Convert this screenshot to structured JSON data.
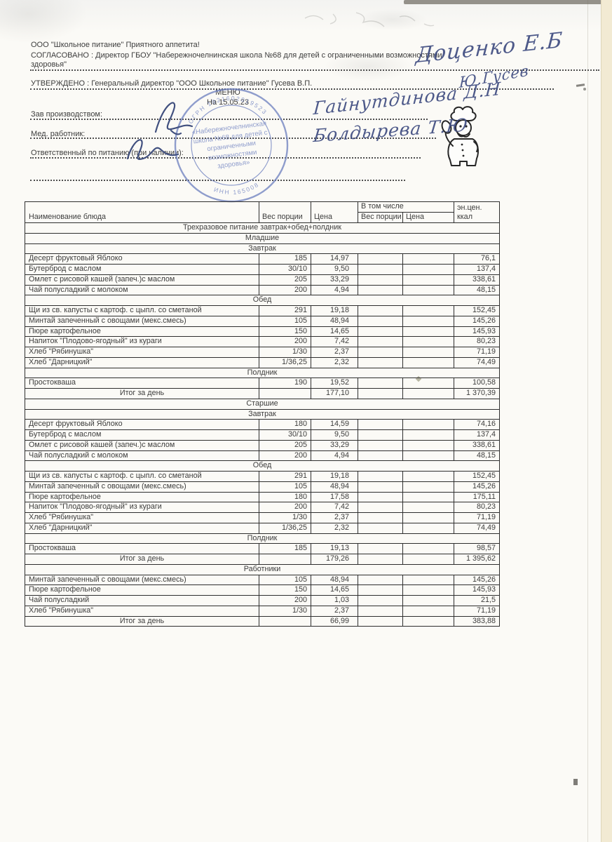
{
  "header": {
    "company_line": "ООО \"Школьное питание\" Приятного аппетита!",
    "agreed_label": "СОГЛАСОВАНО : Директор ГБОУ \"Набережночелнинская школа №68 для детей с ограниченными возможностями здоровья\"",
    "approved_label": "УТВЕРЖДЕНО : Генеральный директор \"ООО Школьное питание\" Гусева В.П.",
    "menu_title": "МЕНЮ",
    "menu_date": "На 15.05.23",
    "prod_manager_label": "Зав производством:",
    "med_worker_label": "Мед. работник:",
    "nutrition_resp_label": "Ответственный по питанию (при наличии):"
  },
  "signatures": {
    "agreed": "Доценко Е.Б",
    "approved": "Ю.Гусев",
    "prod_manager": "Гайнутдинова Д.Н",
    "med_worker": "Болдырева Т.Ю"
  },
  "stamp": {
    "arc_top": "ОГРН 1021602019523",
    "arc_bottom": "ИНН 165008",
    "line1": "«Набережночелнинская",
    "line2": "школа №68 для детей с",
    "line3": "ограниченными",
    "line4": "возможностями",
    "line5": "здоровья»",
    "color": "#7183c1"
  },
  "icons": {
    "chef_mascot": "chef-with-ladle-mascot-icon",
    "prod_scribble": "signature-scribble-icon",
    "med_scribble": "signature-scribble-icon"
  },
  "table": {
    "columns": {
      "name": "Наименование блюда",
      "weight": "Вес порции",
      "price": "Цена",
      "including": "В том числе",
      "weight2": "Вес порции",
      "price2": "Цена",
      "energy_line1": "эн.цен.",
      "energy_line2": "ккал"
    },
    "rows": [
      {
        "type": "section",
        "label": "Трехразовое питание завтрак+обед+полдник"
      },
      {
        "type": "section",
        "label": "Младшие"
      },
      {
        "type": "section",
        "label": "Завтрак"
      },
      {
        "type": "item",
        "name": "Десерт фруктовый Яблоко",
        "weight": "185",
        "price": "14,97",
        "kcal": "76,1"
      },
      {
        "type": "item",
        "name": "Бутерброд с маслом",
        "weight": "30/10",
        "price": "9,50",
        "kcal": "137,4"
      },
      {
        "type": "item",
        "name": "Омлет с рисовой кашей (запеч.)с маслом",
        "weight": "205",
        "price": "33,29",
        "kcal": "338,61"
      },
      {
        "type": "item",
        "name": "Чай полусладкий с молоком",
        "weight": "200",
        "price": "4,94",
        "kcal": "48,15"
      },
      {
        "type": "section",
        "label": "Обед"
      },
      {
        "type": "item",
        "name": "Щи из св. капусты с картоф. с цыпл. со сметаной",
        "weight": "291",
        "price": "19,18",
        "kcal": "152,45"
      },
      {
        "type": "item",
        "name": "Минтай запеченный с овощами (мекс.смесь)",
        "weight": "105",
        "price": "48,94",
        "kcal": "145,26"
      },
      {
        "type": "item",
        "name": "Пюре картофельное",
        "weight": "150",
        "price": "14,65",
        "kcal": "145,93"
      },
      {
        "type": "item",
        "name": "Напиток \"Плодово-ягодный\" из кураги",
        "weight": "200",
        "price": "7,42",
        "kcal": "80,23"
      },
      {
        "type": "item",
        "name": "Хлеб \"Рябинушка\"",
        "weight": "1/30",
        "price": "2,37",
        "kcal": "71,19"
      },
      {
        "type": "item",
        "name": "Хлеб \"Дарницкий\"",
        "weight": "1/36,25",
        "price": "2,32",
        "kcal": "74,49"
      },
      {
        "type": "section",
        "label": "Полдник"
      },
      {
        "type": "item",
        "name": "Простокваша",
        "weight": "190",
        "price": "19,52",
        "kcal": "100,58"
      },
      {
        "type": "total",
        "label": "Итог за день",
        "price": "177,10",
        "kcal": "1 370,39"
      },
      {
        "type": "section",
        "label": "Старшие"
      },
      {
        "type": "section",
        "label": "Завтрак"
      },
      {
        "type": "item",
        "name": "Десерт фруктовый Яблоко",
        "weight": "180",
        "price": "14,59",
        "kcal": "74,16"
      },
      {
        "type": "item",
        "name": "Бутерброд с маслом",
        "weight": "30/10",
        "price": "9,50",
        "kcal": "137,4"
      },
      {
        "type": "item",
        "name": "Омлет с рисовой кашей (запеч.)с маслом",
        "weight": "205",
        "price": "33,29",
        "kcal": "338,61"
      },
      {
        "type": "item",
        "name": "Чай полусладкий с молоком",
        "weight": "200",
        "price": "4,94",
        "kcal": "48,15"
      },
      {
        "type": "section",
        "label": "Обед"
      },
      {
        "type": "item",
        "name": "Щи из св. капусты с картоф. с цыпл. со сметаной",
        "weight": "291",
        "price": "19,18",
        "kcal": "152,45"
      },
      {
        "type": "item",
        "name": "Минтай запеченный с овощами (мекс.смесь)",
        "weight": "105",
        "price": "48,94",
        "kcal": "145,26"
      },
      {
        "type": "item",
        "name": "Пюре картофельное",
        "weight": "180",
        "price": "17,58",
        "kcal": "175,11"
      },
      {
        "type": "item",
        "name": "Напиток \"Плодово-ягодный\" из кураги",
        "weight": "200",
        "price": "7,42",
        "kcal": "80,23"
      },
      {
        "type": "item",
        "name": "Хлеб \"Рябинушка\"",
        "weight": "1/30",
        "price": "2,37",
        "kcal": "71,19"
      },
      {
        "type": "item",
        "name": "Хлеб \"Дарницкий\"",
        "weight": "1/36,25",
        "price": "2,32",
        "kcal": "74,49"
      },
      {
        "type": "section",
        "label": "Полдник"
      },
      {
        "type": "item",
        "name": "Простокваша",
        "weight": "185",
        "price": "19,13",
        "kcal": "98,57"
      },
      {
        "type": "total",
        "label": "Итог за день",
        "price": "179,26",
        "kcal": "1 395,62"
      },
      {
        "type": "section",
        "label": "Работники"
      },
      {
        "type": "item",
        "name": "Минтай запеченный с овощами (мекс.смесь)",
        "weight": "105",
        "price": "48,94",
        "kcal": "145,26"
      },
      {
        "type": "item",
        "name": "Пюре картофельное",
        "weight": "150",
        "price": "14,65",
        "kcal": "145,93"
      },
      {
        "type": "item",
        "name": "Чай полусладкий",
        "weight": "200",
        "price": "1,03",
        "kcal": "21,5"
      },
      {
        "type": "item",
        "name": "Хлеб \"Рябинушка\"",
        "weight": "1/30",
        "price": "2,37",
        "kcal": "71,19"
      },
      {
        "type": "total",
        "label": "Итог за день",
        "price": "66,99",
        "kcal": "383,88"
      }
    ]
  }
}
